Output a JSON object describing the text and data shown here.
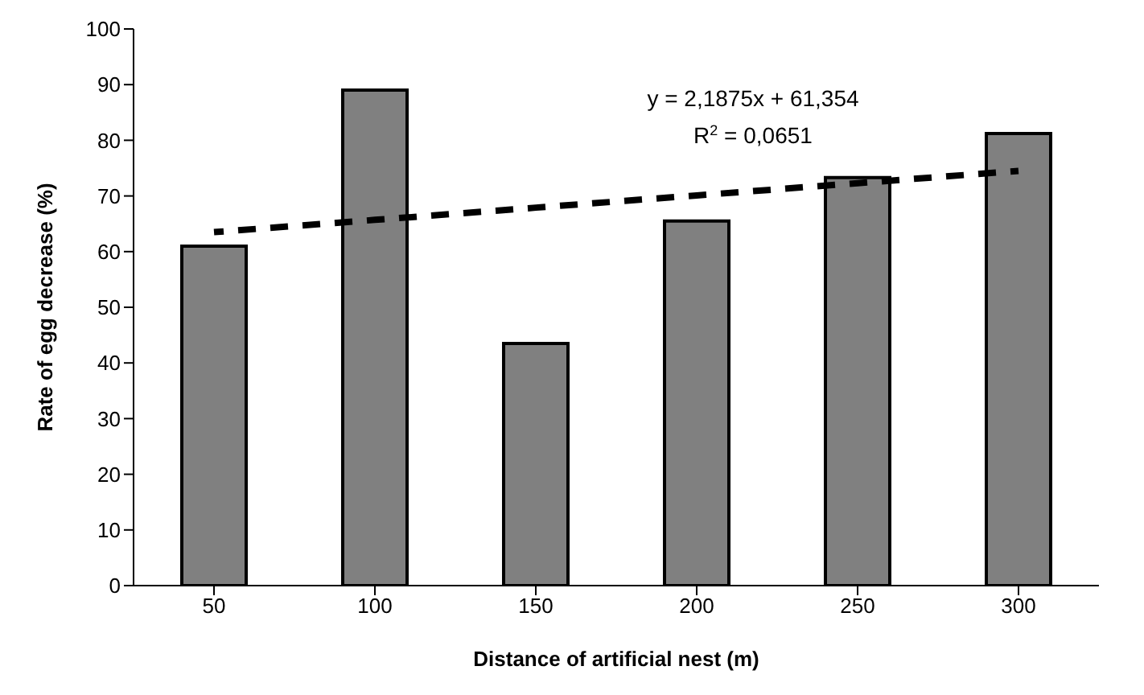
{
  "chart_data": {
    "type": "bar",
    "xlabel": "Distance of artificial nest (m)",
    "ylabel": "Rate of egg decrease (%)",
    "categories": [
      "50",
      "100",
      "150",
      "200",
      "250",
      "300"
    ],
    "series": [
      {
        "color": "#808080",
        "values": [
          61,
          89,
          43.5,
          65.5,
          73.3,
          81.2
        ]
      },
      {
        "type": "line",
        "color": "#000000",
        "line_style": "dashed",
        "marker": "none",
        "values": [
          63.5,
          65.7,
          67.9,
          70.1,
          72.3,
          74.5
        ]
      }
    ],
    "ylim": [
      0,
      100
    ],
    "yticks": [
      0,
      10,
      20,
      30,
      40,
      50,
      60,
      70,
      80,
      90,
      100
    ],
    "grid": false,
    "legend": false,
    "annotations": [
      "y = 2,1875x + 61,354",
      "R$^{2}$ = 0,0651"
    ]
  }
}
